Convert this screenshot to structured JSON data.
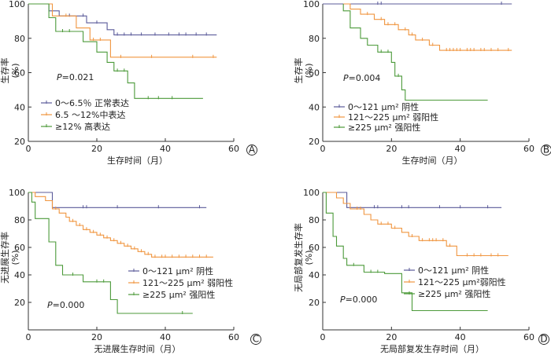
{
  "chart_data": [
    {
      "type": "line",
      "panel_label": "A",
      "ylabel": "生存率",
      "yunit": "(%)",
      "xlabel": "生存时间（月）",
      "xlim": [
        0,
        60
      ],
      "ylim": [
        20,
        100
      ],
      "xticks": [
        "0",
        "20",
        "40",
        "60"
      ],
      "yticks": [
        "20",
        "40",
        "60",
        "80",
        "100"
      ],
      "pvalue": "P=0.021",
      "series": [
        {
          "name": "0～6.5％ 正常表达",
          "color": "#5b5b9a",
          "steps": [
            [
              0,
              100
            ],
            [
              6,
              100
            ],
            [
              6,
              96
            ],
            [
              9,
              96
            ],
            [
              9,
              93
            ],
            [
              17,
              93
            ],
            [
              17,
              89
            ],
            [
              23,
              89
            ],
            [
              23,
              85
            ],
            [
              25,
              85
            ],
            [
              25,
              82
            ],
            [
              55,
              82
            ]
          ],
          "censor": [
            12,
            16,
            20,
            26,
            28,
            30,
            33,
            37,
            41,
            44,
            46,
            49,
            52
          ]
        },
        {
          "name": "6.5 ～12%中表达",
          "color": "#f0953f",
          "steps": [
            [
              0,
              100
            ],
            [
              7,
              100
            ],
            [
              7,
              93
            ],
            [
              14,
              93
            ],
            [
              14,
              86
            ],
            [
              18,
              86
            ],
            [
              18,
              79
            ],
            [
              24,
              79
            ],
            [
              24,
              69
            ],
            [
              55,
              69
            ]
          ],
          "censor": [
            11,
            19,
            21,
            27,
            36,
            48,
            54
          ]
        },
        {
          "name": "≥12%     高表达",
          "color": "#4c9a3a",
          "steps": [
            [
              0,
              100
            ],
            [
              6,
              100
            ],
            [
              6,
              92
            ],
            [
              8,
              92
            ],
            [
              8,
              84
            ],
            [
              16,
              84
            ],
            [
              16,
              78
            ],
            [
              20,
              78
            ],
            [
              20,
              72
            ],
            [
              23,
              72
            ],
            [
              23,
              66
            ],
            [
              25,
              66
            ],
            [
              25,
              61
            ],
            [
              29,
              61
            ],
            [
              29,
              54
            ],
            [
              31,
              54
            ],
            [
              31,
              45
            ],
            [
              51,
              45
            ]
          ],
          "censor": [
            10,
            12,
            26,
            28,
            35,
            38,
            42
          ]
        }
      ]
    },
    {
      "type": "line",
      "panel_label": "B",
      "ylabel": "生存率",
      "yunit": "(%)",
      "xlabel": "生存时间（月）",
      "xlim": [
        0,
        60
      ],
      "ylim": [
        20,
        100
      ],
      "xticks": [
        "0",
        "20",
        "40",
        "60"
      ],
      "yticks": [
        "20",
        "40",
        "60",
        "80",
        "100"
      ],
      "pvalue": "P=0.004",
      "series": [
        {
          "name": "0～121 μm²   阴性",
          "color": "#5b5b9a",
          "steps": [
            [
              0,
              100
            ],
            [
              55,
              100
            ]
          ],
          "censor": [
            16,
            17,
            52
          ]
        },
        {
          "name": "121～225 μm²  弱阳性",
          "color": "#f0953f",
          "steps": [
            [
              6,
              100
            ],
            [
              8,
              100
            ],
            [
              8,
              97
            ],
            [
              11,
              97
            ],
            [
              11,
              94
            ],
            [
              15,
              94
            ],
            [
              15,
              91
            ],
            [
              18,
              91
            ],
            [
              18,
              88
            ],
            [
              22,
              88
            ],
            [
              22,
              85
            ],
            [
              25,
              85
            ],
            [
              25,
              82
            ],
            [
              27,
              82
            ],
            [
              27,
              79
            ],
            [
              31,
              79
            ],
            [
              31,
              76
            ],
            [
              34,
              76
            ],
            [
              34,
              73
            ],
            [
              55,
              73
            ]
          ],
          "censor": [
            13,
            17,
            19,
            21,
            24,
            26,
            29,
            32,
            36,
            37,
            38,
            39,
            40,
            42,
            43,
            44,
            46,
            47,
            49,
            51,
            54
          ]
        },
        {
          "name": "≥225 μm²    强阳性",
          "color": "#4c9a3a",
          "steps": [
            [
              6,
              100
            ],
            [
              6,
              96
            ],
            [
              8,
              96
            ],
            [
              8,
              86
            ],
            [
              11,
              86
            ],
            [
              11,
              80
            ],
            [
              13,
              80
            ],
            [
              13,
              76
            ],
            [
              16,
              76
            ],
            [
              16,
              72
            ],
            [
              20,
              72
            ],
            [
              20,
              66
            ],
            [
              21,
              66
            ],
            [
              21,
              58
            ],
            [
              23,
              58
            ],
            [
              23,
              50
            ],
            [
              24,
              50
            ],
            [
              24,
              44
            ],
            [
              48,
              44
            ]
          ],
          "censor": [
            17,
            19,
            22
          ]
        }
      ]
    },
    {
      "type": "line",
      "panel_label": "C",
      "ylabel": "无进展生存率",
      "yunit": "(%)",
      "xlabel": "无进展生存时间（月）",
      "xlim": [
        0,
        60
      ],
      "ylim": [
        0,
        100
      ],
      "xticks": [
        "0",
        "20",
        "40",
        "60"
      ],
      "yticks": [
        "20",
        "40",
        "60",
        "80",
        "100"
      ],
      "pvalue": "P=0.000",
      "series": [
        {
          "name": "0～121 μm²   阴性",
          "color": "#5b5b9a",
          "steps": [
            [
              0,
              100
            ],
            [
              7,
              100
            ],
            [
              7,
              89
            ],
            [
              52,
              89
            ]
          ],
          "censor": [
            16,
            17,
            26,
            38,
            50
          ]
        },
        {
          "name": "121～225 μm² 弱阳性",
          "color": "#f0953f",
          "steps": [
            [
              0,
              100
            ],
            [
              2,
              100
            ],
            [
              2,
              97
            ],
            [
              5,
              97
            ],
            [
              5,
              94
            ],
            [
              7,
              94
            ],
            [
              7,
              88
            ],
            [
              9,
              88
            ],
            [
              9,
              85
            ],
            [
              11,
              85
            ],
            [
              11,
              82
            ],
            [
              12,
              82
            ],
            [
              12,
              79
            ],
            [
              14,
              79
            ],
            [
              14,
              76
            ],
            [
              16,
              76
            ],
            [
              16,
              73
            ],
            [
              18,
              73
            ],
            [
              18,
              71
            ],
            [
              20,
              71
            ],
            [
              20,
              69
            ],
            [
              22,
              69
            ],
            [
              22,
              67
            ],
            [
              24,
              67
            ],
            [
              24,
              65
            ],
            [
              26,
              65
            ],
            [
              26,
              63
            ],
            [
              28,
              63
            ],
            [
              28,
              61
            ],
            [
              30,
              61
            ],
            [
              30,
              59
            ],
            [
              32,
              59
            ],
            [
              32,
              57
            ],
            [
              34,
              57
            ],
            [
              34,
              55
            ],
            [
              36,
              55
            ],
            [
              36,
              53
            ],
            [
              54,
              53
            ]
          ],
          "censor": [
            8,
            13,
            15,
            17,
            19,
            21,
            23,
            25,
            27,
            29,
            31,
            33,
            35,
            37,
            39,
            40,
            42,
            44,
            46,
            48,
            50,
            52
          ]
        },
        {
          "name": "≥225 μm²    强阳性",
          "color": "#4c9a3a",
          "steps": [
            [
              0,
              100
            ],
            [
              1,
              100
            ],
            [
              1,
              93
            ],
            [
              2,
              93
            ],
            [
              2,
              81
            ],
            [
              6,
              81
            ],
            [
              6,
              64
            ],
            [
              8,
              64
            ],
            [
              8,
              47
            ],
            [
              10,
              47
            ],
            [
              10,
              40
            ],
            [
              16,
              40
            ],
            [
              16,
              35
            ],
            [
              24,
              35
            ],
            [
              24,
              22
            ],
            [
              26,
              22
            ],
            [
              26,
              12
            ],
            [
              48,
              12
            ]
          ],
          "censor": [
            13,
            20,
            22,
            45
          ]
        }
      ]
    },
    {
      "type": "line",
      "panel_label": "D",
      "ylabel": "无局部复发生存率",
      "yunit": "(%)",
      "xlabel": "无局部复发生存时间（月）",
      "xlim": [
        0,
        60
      ],
      "ylim": [
        0,
        100
      ],
      "xticks": [
        "0",
        "20",
        "40",
        "60"
      ],
      "yticks": [
        "20",
        "40",
        "60",
        "80",
        "100"
      ],
      "pvalue": "P=0.000",
      "series": [
        {
          "name": "0～121 μm²   阴性",
          "color": "#5b5b9a",
          "steps": [
            [
              0,
              100
            ],
            [
              7,
              100
            ],
            [
              7,
              89
            ],
            [
              52,
              89
            ]
          ],
          "censor": [
            15,
            16,
            23,
            25,
            34,
            40,
            48
          ]
        },
        {
          "name": "121～225 μm²弱阳性",
          "color": "#f0953f",
          "steps": [
            [
              0,
              100
            ],
            [
              4,
              100
            ],
            [
              4,
              96
            ],
            [
              6,
              96
            ],
            [
              6,
              92
            ],
            [
              8,
              92
            ],
            [
              8,
              88
            ],
            [
              12,
              88
            ],
            [
              12,
              84
            ],
            [
              14,
              84
            ],
            [
              14,
              80
            ],
            [
              16,
              80
            ],
            [
              16,
              77
            ],
            [
              20,
              77
            ],
            [
              20,
              74
            ],
            [
              23,
              74
            ],
            [
              23,
              71
            ],
            [
              25,
              71
            ],
            [
              25,
              68
            ],
            [
              28,
              68
            ],
            [
              28,
              65
            ],
            [
              36,
              65
            ],
            [
              36,
              61
            ],
            [
              39,
              61
            ],
            [
              39,
              54
            ],
            [
              54,
              54
            ]
          ],
          "censor": [
            10,
            11,
            17,
            19,
            21,
            26,
            29,
            31,
            32,
            33,
            35,
            37,
            42,
            44,
            46,
            49,
            51
          ]
        },
        {
          "name": "≥225 μm²    强阳性",
          "color": "#4c9a3a",
          "steps": [
            [
              0,
              100
            ],
            [
              1,
              100
            ],
            [
              1,
              85
            ],
            [
              3,
              85
            ],
            [
              3,
              68
            ],
            [
              4,
              68
            ],
            [
              4,
              61
            ],
            [
              6,
              61
            ],
            [
              6,
              52
            ],
            [
              7,
              52
            ],
            [
              7,
              47
            ],
            [
              12,
              47
            ],
            [
              12,
              42
            ],
            [
              18,
              42
            ],
            [
              18,
              41
            ],
            [
              23,
              41
            ],
            [
              23,
              27
            ],
            [
              26,
              27
            ],
            [
              26,
              14
            ],
            [
              48,
              14
            ]
          ],
          "censor": [
            9,
            14,
            16
          ]
        }
      ]
    }
  ]
}
